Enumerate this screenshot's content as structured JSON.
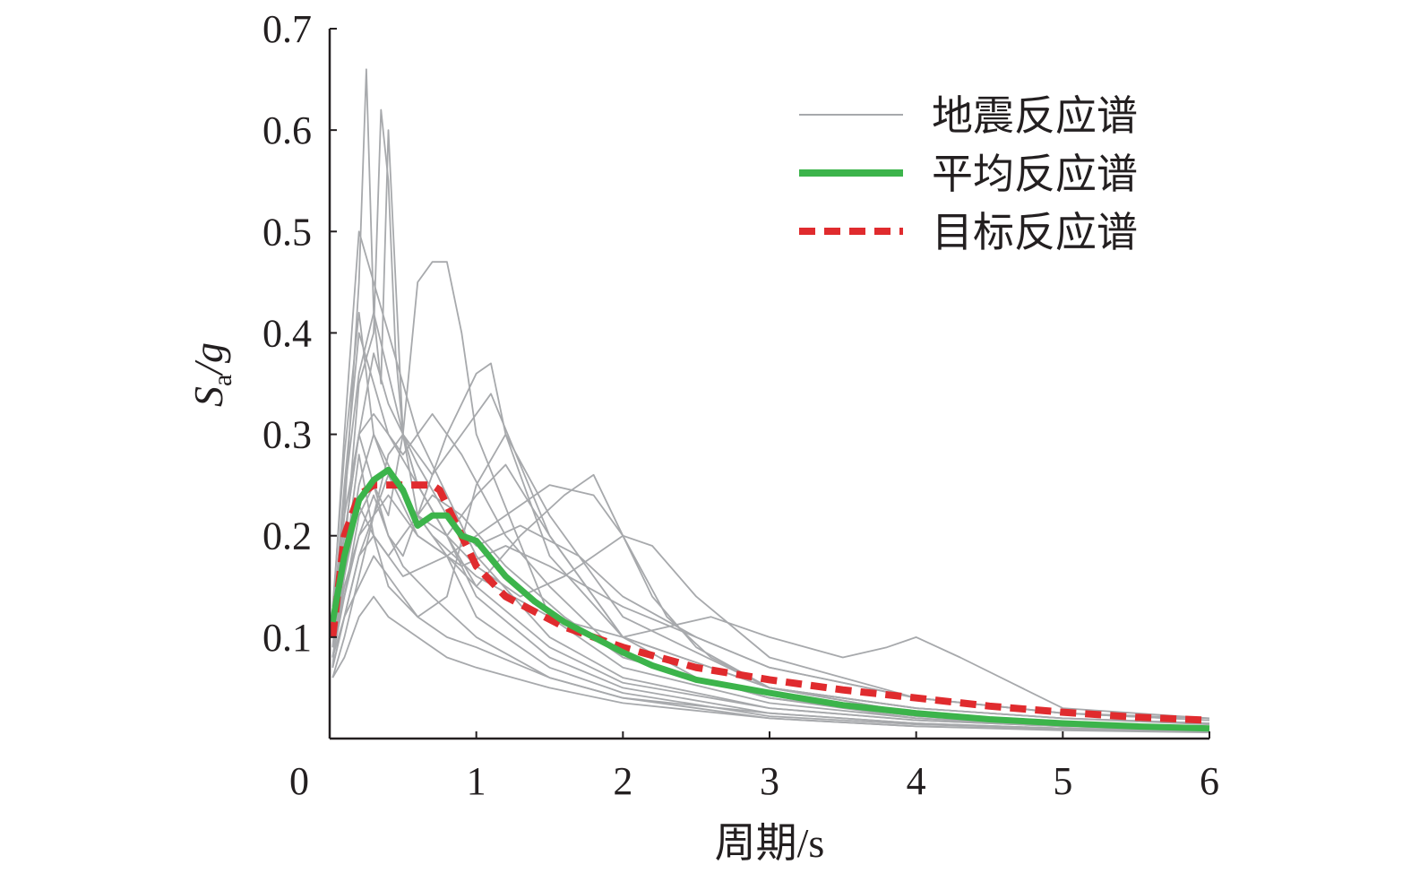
{
  "chart_data": {
    "type": "line",
    "xlabel": "周期/s",
    "ylabel": {
      "main": "S",
      "sub": "a",
      "rest": "/g"
    },
    "xlim": [
      0,
      6
    ],
    "ylim": [
      0,
      0.7
    ],
    "x_ticks": [
      0,
      1,
      2,
      3,
      4,
      5,
      6
    ],
    "y_ticks": [
      0.1,
      0.2,
      0.3,
      0.4,
      0.5,
      0.6,
      0.7
    ],
    "x_tick_labels": [
      "0",
      "1",
      "2",
      "3",
      "4",
      "5",
      "6"
    ],
    "y_tick_labels": [
      "0.1",
      "0.2",
      "0.3",
      "0.4",
      "0.5",
      "0.6",
      "0.7"
    ],
    "grid": false,
    "legend_position": "top-right",
    "colors": {
      "records": "#a7a9ac",
      "mean": "#3cb44b",
      "target": "#e02b2e",
      "axis": "#231f20"
    },
    "legend": [
      {
        "label": "地震反应谱",
        "style": "thin-gray"
      },
      {
        "label": "平均反应谱",
        "style": "thick-green"
      },
      {
        "label": "目标反应谱",
        "style": "dashed-red"
      }
    ],
    "series": [
      {
        "name": "平均反应谱",
        "x": [
          0.02,
          0.1,
          0.2,
          0.3,
          0.4,
          0.5,
          0.6,
          0.7,
          0.8,
          0.9,
          1.0,
          1.2,
          1.4,
          1.6,
          1.8,
          2.0,
          2.2,
          2.5,
          3.0,
          3.5,
          4.0,
          4.5,
          5.0,
          5.5,
          6.0
        ],
        "y": [
          0.115,
          0.18,
          0.235,
          0.255,
          0.265,
          0.245,
          0.21,
          0.22,
          0.22,
          0.2,
          0.195,
          0.16,
          0.135,
          0.115,
          0.1,
          0.085,
          0.072,
          0.058,
          0.045,
          0.033,
          0.025,
          0.019,
          0.015,
          0.012,
          0.01
        ]
      },
      {
        "name": "目标反应谱",
        "x": [
          0.02,
          0.1,
          0.2,
          0.3,
          0.35,
          0.4,
          0.5,
          0.6,
          0.7,
          0.75,
          0.8,
          0.9,
          1.0,
          1.2,
          1.4,
          1.6,
          1.8,
          2.0,
          2.5,
          3.0,
          3.5,
          4.0,
          4.5,
          5.0,
          5.5,
          6.0
        ],
        "y": [
          0.1,
          0.2,
          0.24,
          0.25,
          0.25,
          0.25,
          0.25,
          0.25,
          0.25,
          0.245,
          0.23,
          0.2,
          0.17,
          0.14,
          0.125,
          0.11,
          0.1,
          0.09,
          0.07,
          0.058,
          0.048,
          0.04,
          0.032,
          0.026,
          0.021,
          0.018
        ]
      }
    ],
    "record_series": [
      {
        "x": [
          0.02,
          0.1,
          0.2,
          0.25,
          0.3,
          0.35,
          0.4,
          0.5,
          0.6,
          0.8,
          1.0,
          1.5,
          2.0,
          3.0,
          4.0,
          5.0,
          6.0
        ],
        "y": [
          0.09,
          0.22,
          0.45,
          0.66,
          0.42,
          0.35,
          0.6,
          0.3,
          0.25,
          0.2,
          0.14,
          0.08,
          0.05,
          0.025,
          0.015,
          0.01,
          0.008
        ]
      },
      {
        "x": [
          0.02,
          0.1,
          0.2,
          0.3,
          0.35,
          0.4,
          0.45,
          0.5,
          0.6,
          0.8,
          1.0,
          1.5,
          2.0,
          3.0,
          4.0,
          5.0,
          6.0
        ],
        "y": [
          0.1,
          0.18,
          0.35,
          0.4,
          0.62,
          0.55,
          0.38,
          0.3,
          0.22,
          0.18,
          0.12,
          0.07,
          0.045,
          0.022,
          0.014,
          0.01,
          0.008
        ]
      },
      {
        "x": [
          0.02,
          0.1,
          0.2,
          0.3,
          0.4,
          0.5,
          0.6,
          0.7,
          0.8,
          0.9,
          1.0,
          1.5,
          2.0,
          3.0,
          4.0,
          5.0,
          6.0
        ],
        "y": [
          0.08,
          0.14,
          0.22,
          0.25,
          0.22,
          0.3,
          0.45,
          0.47,
          0.47,
          0.4,
          0.3,
          0.12,
          0.07,
          0.035,
          0.02,
          0.014,
          0.01
        ]
      },
      {
        "x": [
          0.02,
          0.1,
          0.2,
          0.3,
          0.4,
          0.5,
          0.6,
          0.8,
          1.0,
          1.1,
          1.2,
          1.5,
          2.0,
          3.0,
          4.0,
          5.0,
          6.0
        ],
        "y": [
          0.1,
          0.2,
          0.3,
          0.25,
          0.2,
          0.18,
          0.22,
          0.3,
          0.36,
          0.37,
          0.3,
          0.18,
          0.1,
          0.05,
          0.03,
          0.02,
          0.015
        ]
      },
      {
        "x": [
          0.02,
          0.1,
          0.2,
          0.3,
          0.5,
          0.8,
          1.0,
          1.2,
          1.5,
          1.8,
          2.0,
          2.2,
          2.5,
          3.0,
          4.0,
          5.0,
          6.0
        ],
        "y": [
          0.07,
          0.12,
          0.18,
          0.2,
          0.16,
          0.18,
          0.2,
          0.22,
          0.25,
          0.24,
          0.2,
          0.14,
          0.09,
          0.05,
          0.03,
          0.02,
          0.014
        ]
      },
      {
        "x": [
          0.02,
          0.1,
          0.2,
          0.4,
          0.6,
          0.8,
          1.0,
          1.3,
          1.6,
          1.8,
          2.0,
          2.3,
          2.6,
          3.0,
          4.0,
          5.0,
          6.0
        ],
        "y": [
          0.08,
          0.15,
          0.2,
          0.24,
          0.2,
          0.18,
          0.15,
          0.2,
          0.24,
          0.26,
          0.2,
          0.12,
          0.08,
          0.05,
          0.025,
          0.015,
          0.012
        ]
      },
      {
        "x": [
          0.02,
          0.1,
          0.2,
          0.3,
          0.5,
          0.7,
          1.0,
          1.5,
          2.0,
          2.3,
          2.6,
          3.0,
          3.5,
          3.8,
          4.0,
          4.3,
          5.0,
          6.0
        ],
        "y": [
          0.09,
          0.16,
          0.25,
          0.3,
          0.24,
          0.2,
          0.16,
          0.12,
          0.1,
          0.11,
          0.12,
          0.1,
          0.08,
          0.09,
          0.1,
          0.08,
          0.03,
          0.02
        ]
      },
      {
        "x": [
          0.02,
          0.1,
          0.2,
          0.3,
          0.4,
          0.6,
          0.8,
          1.0,
          1.3,
          1.6,
          2.0,
          2.2,
          2.5,
          3.0,
          4.0,
          5.0,
          6.0
        ],
        "y": [
          0.11,
          0.25,
          0.4,
          0.35,
          0.3,
          0.25,
          0.2,
          0.17,
          0.14,
          0.16,
          0.2,
          0.19,
          0.14,
          0.08,
          0.04,
          0.025,
          0.018
        ]
      },
      {
        "x": [
          0.02,
          0.1,
          0.2,
          0.3,
          0.4,
          0.5,
          0.7,
          0.9,
          1.1,
          1.5,
          2.0,
          2.5,
          3.0,
          4.0,
          5.0,
          6.0
        ],
        "y": [
          0.06,
          0.1,
          0.16,
          0.22,
          0.28,
          0.3,
          0.26,
          0.3,
          0.34,
          0.2,
          0.1,
          0.06,
          0.04,
          0.022,
          0.015,
          0.01
        ]
      },
      {
        "x": [
          0.02,
          0.1,
          0.2,
          0.3,
          0.4,
          0.5,
          0.6,
          0.8,
          1.0,
          1.5,
          2.0,
          3.0,
          4.0,
          5.0,
          6.0
        ],
        "y": [
          0.12,
          0.3,
          0.5,
          0.45,
          0.4,
          0.35,
          0.3,
          0.24,
          0.18,
          0.1,
          0.06,
          0.03,
          0.018,
          0.012,
          0.009
        ]
      },
      {
        "x": [
          0.02,
          0.1,
          0.2,
          0.3,
          0.4,
          0.5,
          0.6,
          0.8,
          1.0,
          1.5,
          2.0,
          3.0,
          4.0,
          5.0,
          6.0
        ],
        "y": [
          0.08,
          0.12,
          0.15,
          0.18,
          0.16,
          0.14,
          0.12,
          0.1,
          0.09,
          0.06,
          0.04,
          0.025,
          0.015,
          0.01,
          0.008
        ]
      },
      {
        "x": [
          0.02,
          0.1,
          0.2,
          0.3,
          0.5,
          0.7,
          0.9,
          1.2,
          1.5,
          2.0,
          3.0,
          4.0,
          5.0,
          6.0
        ],
        "y": [
          0.07,
          0.2,
          0.3,
          0.32,
          0.28,
          0.32,
          0.28,
          0.2,
          0.15,
          0.08,
          0.04,
          0.02,
          0.012,
          0.01
        ]
      },
      {
        "x": [
          0.02,
          0.1,
          0.2,
          0.3,
          0.4,
          0.6,
          0.8,
          1.0,
          1.2,
          1.5,
          2.0,
          3.0,
          4.0,
          5.0,
          6.0
        ],
        "y": [
          0.1,
          0.17,
          0.28,
          0.2,
          0.15,
          0.12,
          0.14,
          0.25,
          0.3,
          0.22,
          0.12,
          0.05,
          0.025,
          0.015,
          0.012
        ]
      },
      {
        "x": [
          0.02,
          0.1,
          0.2,
          0.3,
          0.4,
          0.5,
          0.7,
          1.0,
          1.5,
          2.0,
          3.0,
          4.0,
          5.0,
          6.0
        ],
        "y": [
          0.09,
          0.14,
          0.2,
          0.24,
          0.2,
          0.17,
          0.14,
          0.1,
          0.06,
          0.04,
          0.02,
          0.012,
          0.008,
          0.006
        ]
      },
      {
        "x": [
          0.02,
          0.1,
          0.2,
          0.3,
          0.4,
          0.6,
          0.8,
          1.0,
          1.3,
          1.7,
          2.0,
          2.5,
          3.0,
          4.0,
          5.0,
          6.0
        ],
        "y": [
          0.11,
          0.22,
          0.3,
          0.38,
          0.33,
          0.27,
          0.22,
          0.19,
          0.21,
          0.18,
          0.14,
          0.1,
          0.07,
          0.04,
          0.025,
          0.02
        ]
      },
      {
        "x": [
          0.02,
          0.1,
          0.2,
          0.3,
          0.4,
          0.5,
          0.6,
          0.8,
          1.0,
          1.5,
          2.0,
          3.0,
          4.0,
          5.0,
          6.0
        ],
        "y": [
          0.06,
          0.08,
          0.12,
          0.14,
          0.12,
          0.11,
          0.1,
          0.08,
          0.07,
          0.05,
          0.035,
          0.02,
          0.012,
          0.009,
          0.007
        ]
      },
      {
        "x": [
          0.02,
          0.1,
          0.2,
          0.3,
          0.4,
          0.6,
          0.8,
          1.0,
          1.2,
          1.5,
          2.0,
          3.0,
          4.0,
          5.0,
          6.0
        ],
        "y": [
          0.13,
          0.28,
          0.42,
          0.3,
          0.26,
          0.22,
          0.2,
          0.24,
          0.27,
          0.2,
          0.1,
          0.05,
          0.03,
          0.02,
          0.015
        ]
      },
      {
        "x": [
          0.02,
          0.1,
          0.2,
          0.3,
          0.4,
          0.5,
          0.7,
          0.9,
          1.2,
          1.6,
          2.0,
          3.0,
          4.0,
          5.0,
          6.0
        ],
        "y": [
          0.08,
          0.16,
          0.23,
          0.2,
          0.18,
          0.2,
          0.24,
          0.22,
          0.17,
          0.12,
          0.08,
          0.04,
          0.022,
          0.014,
          0.01
        ]
      },
      {
        "x": [
          0.02,
          0.1,
          0.2,
          0.3,
          0.4,
          0.5,
          0.6,
          0.8,
          1.0,
          1.5,
          2.0,
          3.0,
          4.0,
          5.0,
          6.0
        ],
        "y": [
          0.1,
          0.24,
          0.36,
          0.42,
          0.36,
          0.3,
          0.25,
          0.2,
          0.15,
          0.09,
          0.055,
          0.03,
          0.018,
          0.012,
          0.009
        ]
      },
      {
        "x": [
          0.02,
          0.1,
          0.2,
          0.3,
          0.4,
          0.6,
          0.9,
          1.2,
          1.5,
          2.0,
          2.5,
          3.0,
          4.0,
          5.0,
          6.0
        ],
        "y": [
          0.07,
          0.12,
          0.18,
          0.22,
          0.26,
          0.2,
          0.17,
          0.19,
          0.17,
          0.13,
          0.1,
          0.07,
          0.04,
          0.025,
          0.018
        ]
      }
    ]
  }
}
